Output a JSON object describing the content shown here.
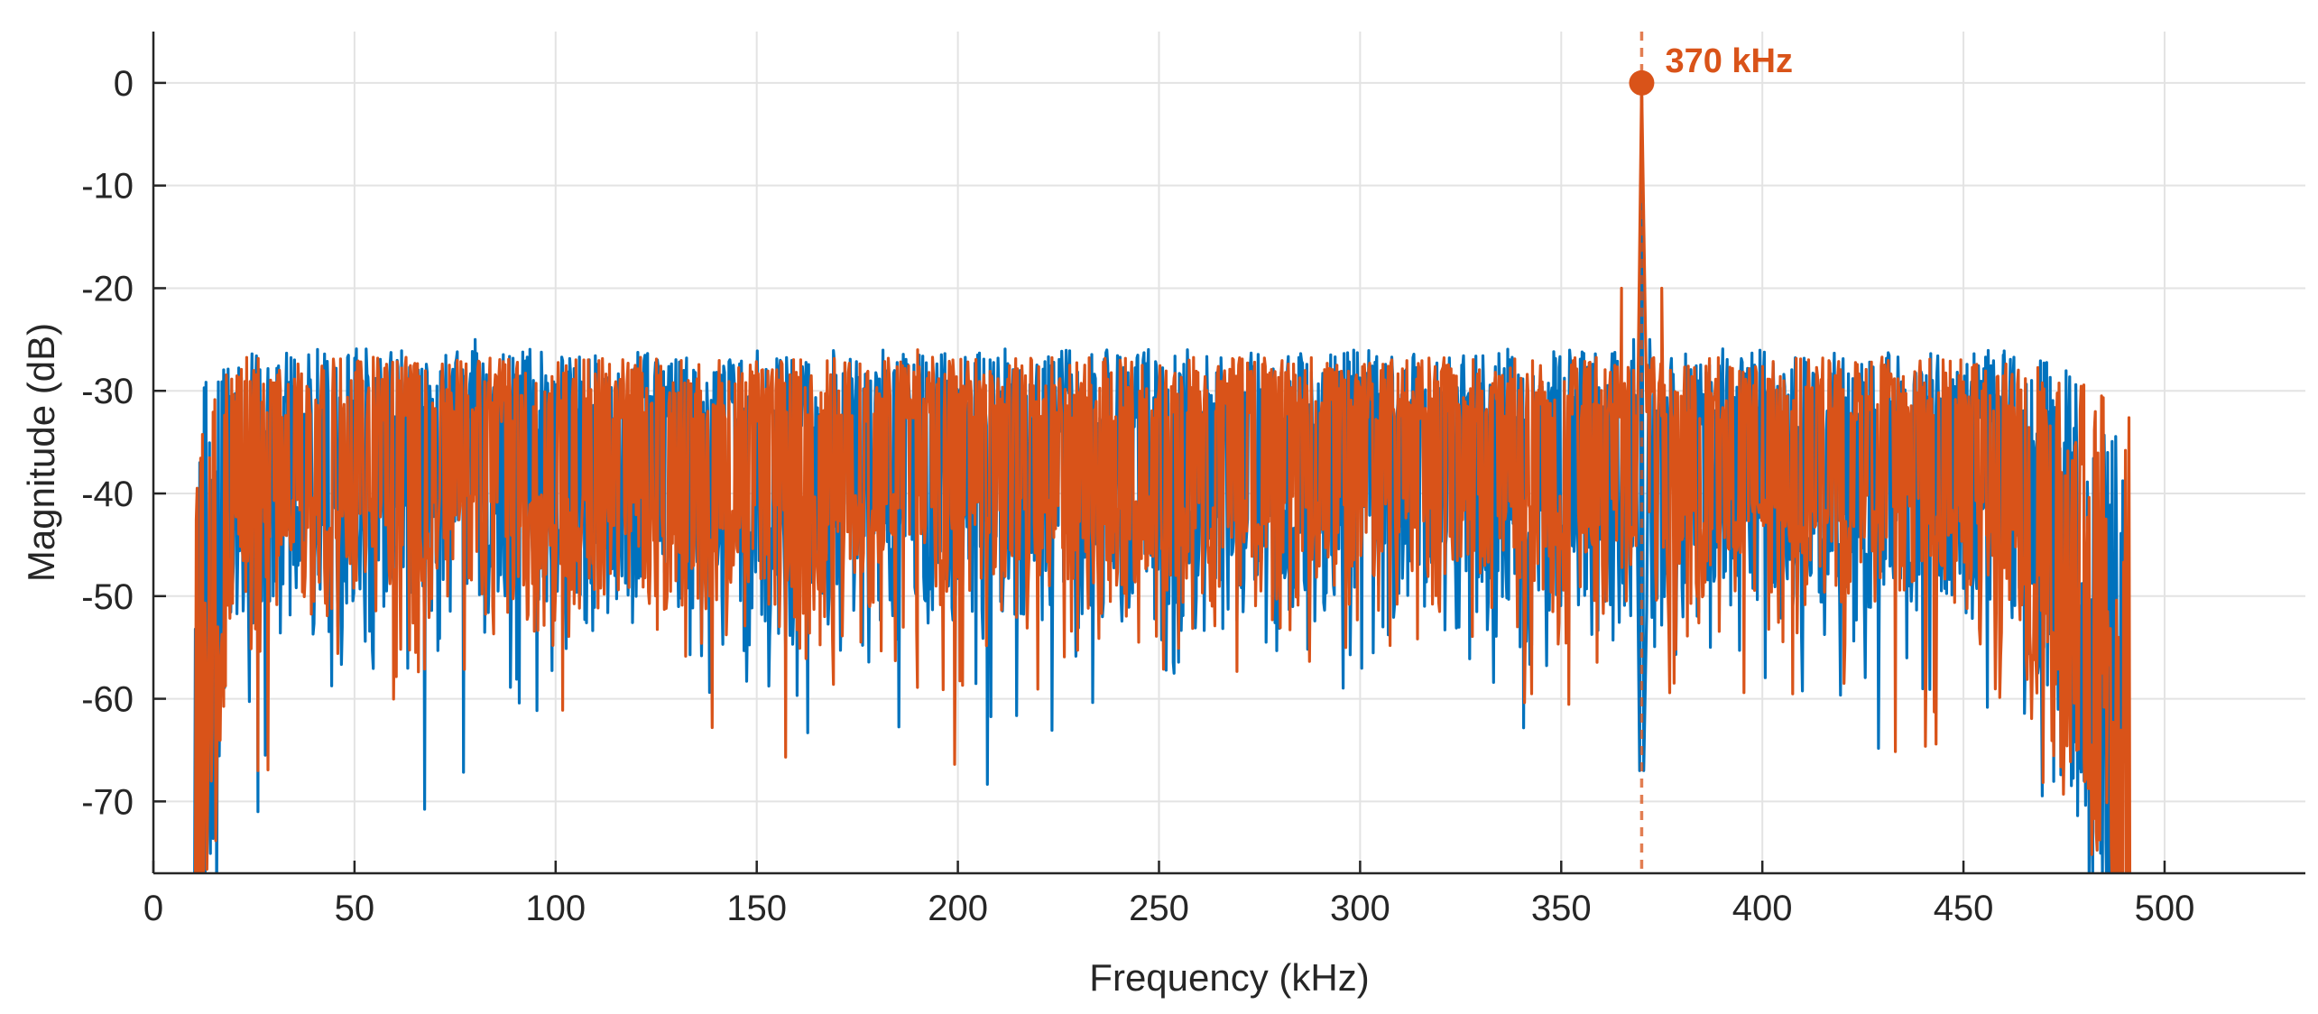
{
  "chart_data": {
    "type": "line",
    "title": "",
    "xlabel": "Frequency (kHz)",
    "ylabel": "Magnitude (dB)",
    "xlim": [
      0,
      535
    ],
    "ylim": [
      -77,
      5
    ],
    "xticks": [
      0,
      50,
      100,
      150,
      200,
      250,
      300,
      350,
      400,
      450,
      500
    ],
    "yticks": [
      0,
      -10,
      -20,
      -30,
      -40,
      -50,
      -60,
      -70
    ],
    "grid": true,
    "legend": "none",
    "series": [
      {
        "color": "#0072BD",
        "noise_floor": {
          "passband_kHz": [
            20,
            460
          ],
          "median_db": -38,
          "peak_db": -25,
          "min_db": -71,
          "rolloff_end_kHz": 490
        },
        "points": [
          [
            10,
            -77
          ],
          [
            12,
            -73
          ],
          [
            14,
            -64
          ],
          [
            16,
            -55
          ],
          [
            18,
            -47
          ],
          [
            20,
            -40
          ],
          [
            26,
            -71
          ],
          [
            80,
            -25
          ],
          [
            368,
            -25
          ],
          [
            369.5,
            -67
          ],
          [
            370,
            0
          ],
          [
            370.5,
            -67
          ],
          [
            372,
            -25
          ],
          [
            460,
            -40
          ],
          [
            470,
            -55
          ],
          [
            480,
            -68
          ],
          [
            490,
            -77
          ]
        ]
      },
      {
        "color": "#D95319",
        "noise_floor": {
          "passband_kHz": [
            20,
            460
          ],
          "median_db": -37,
          "peak_db": -26,
          "min_db": -67,
          "rolloff_end_kHz": 492
        },
        "points": [
          [
            10,
            -77
          ],
          [
            12,
            -72
          ],
          [
            14,
            -62
          ],
          [
            16,
            -53
          ],
          [
            18,
            -45
          ],
          [
            20,
            -38
          ],
          [
            26,
            -67
          ],
          [
            190,
            -26
          ],
          [
            365,
            -20
          ],
          [
            368,
            -28
          ],
          [
            370,
            0
          ],
          [
            372,
            -28
          ],
          [
            375,
            -20
          ],
          [
            460,
            -38
          ],
          [
            470,
            -52
          ],
          [
            480,
            -66
          ],
          [
            492,
            -77
          ]
        ]
      }
    ],
    "marker": {
      "x": 370,
      "y": 0,
      "label": "370 kHz",
      "color": "#D95319"
    }
  }
}
